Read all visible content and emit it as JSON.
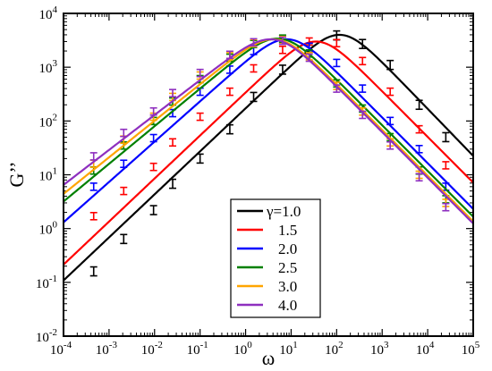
{
  "chart_data": {
    "type": "line",
    "scale": {
      "x": "log",
      "y": "log"
    },
    "xlabel": "ω",
    "ylabel": "G’’",
    "xlim": [
      0.0001,
      100000
    ],
    "ylim": [
      0.01,
      10000
    ],
    "x_ticks": [
      {
        "base": "10",
        "exp": "-4",
        "value": 0.0001
      },
      {
        "base": "10",
        "exp": "-3",
        "value": 0.001
      },
      {
        "base": "10",
        "exp": "-2",
        "value": 0.01
      },
      {
        "base": "10",
        "exp": "-1",
        "value": 0.1
      },
      {
        "base": "10",
        "exp": "0",
        "value": 1
      },
      {
        "base": "10",
        "exp": "1",
        "value": 10
      },
      {
        "base": "10",
        "exp": "2",
        "value": 100
      },
      {
        "base": "10",
        "exp": "3",
        "value": 1000
      },
      {
        "base": "10",
        "exp": "4",
        "value": 10000
      },
      {
        "base": "10",
        "exp": "5",
        "value": 100000
      }
    ],
    "y_ticks": [
      {
        "base": "10",
        "exp": "-2",
        "value": 0.01
      },
      {
        "base": "10",
        "exp": "-1",
        "value": 0.1
      },
      {
        "base": "10",
        "exp": "0",
        "value": 1
      },
      {
        "base": "10",
        "exp": "1",
        "value": 10
      },
      {
        "base": "10",
        "exp": "2",
        "value": 100
      },
      {
        "base": "10",
        "exp": "3",
        "value": 1000
      },
      {
        "base": "10",
        "exp": "4",
        "value": 10000
      }
    ],
    "legend": {
      "position": "bottom-center",
      "entries": [
        "γ=1.0",
        "1.5",
        "2.0",
        "2.5",
        "3.0",
        "4.0"
      ]
    },
    "series": [
      {
        "name": "γ=1.0",
        "color": "#000000",
        "peak": {
          "omega": 115,
          "g": 4000
        },
        "low_slope": 0.8,
        "high_slope": -0.875,
        "points": [
          {
            "x": 0.00046,
            "y": 0.16
          },
          {
            "x": 0.0021,
            "y": 0.64
          },
          {
            "x": 0.0095,
            "y": 2.2
          },
          {
            "x": 0.025,
            "y": 6.8
          },
          {
            "x": 0.1,
            "y": 20
          },
          {
            "x": 0.45,
            "y": 70
          },
          {
            "x": 1.5,
            "y": 280
          },
          {
            "x": 6.5,
            "y": 900
          },
          {
            "x": 25,
            "y": 2300
          },
          {
            "x": 100,
            "y": 3900
          },
          {
            "x": 370,
            "y": 2700
          },
          {
            "x": 1500,
            "y": 1100
          },
          {
            "x": 6500,
            "y": 200
          },
          {
            "x": 25000,
            "y": 50
          }
        ]
      },
      {
        "name": "1.5",
        "color": "#ff0000",
        "peak": {
          "omega": 35,
          "g": 3000
        },
        "low_slope": 0.8,
        "high_slope": -0.85,
        "points": [
          {
            "x": 0.00046,
            "y": 1.7
          },
          {
            "x": 0.0021,
            "y": 5
          },
          {
            "x": 0.0095,
            "y": 14
          },
          {
            "x": 0.025,
            "y": 40
          },
          {
            "x": 0.1,
            "y": 120
          },
          {
            "x": 0.45,
            "y": 350
          },
          {
            "x": 1.5,
            "y": 950
          },
          {
            "x": 6.5,
            "y": 2100
          },
          {
            "x": 25,
            "y": 3000
          },
          {
            "x": 100,
            "y": 2800
          },
          {
            "x": 370,
            "y": 1300
          },
          {
            "x": 1500,
            "y": 350
          },
          {
            "x": 6500,
            "y": 70
          },
          {
            "x": 25000,
            "y": 15
          }
        ]
      },
      {
        "name": "2.0",
        "color": "#0000ff",
        "peak": {
          "omega": 8,
          "g": 3300
        },
        "low_slope": 0.75,
        "high_slope": -0.85,
        "points": [
          {
            "x": 0.00046,
            "y": 6
          },
          {
            "x": 0.0021,
            "y": 16
          },
          {
            "x": 0.0095,
            "y": 48
          },
          {
            "x": 0.025,
            "y": 140
          },
          {
            "x": 0.1,
            "y": 350
          },
          {
            "x": 0.45,
            "y": 900
          },
          {
            "x": 1.5,
            "y": 2000
          },
          {
            "x": 6.5,
            "y": 3300
          },
          {
            "x": 25,
            "y": 2400
          },
          {
            "x": 100,
            "y": 1200
          },
          {
            "x": 370,
            "y": 400
          },
          {
            "x": 1500,
            "y": 100
          },
          {
            "x": 6500,
            "y": 30
          },
          {
            "x": 25000,
            "y": 6
          }
        ]
      },
      {
        "name": "2.5",
        "color": "#008000",
        "peak": {
          "omega": 5,
          "g": 3400
        },
        "low_slope": 0.7,
        "high_slope": -0.85,
        "points": [
          {
            "x": 0.00046,
            "y": 12
          },
          {
            "x": 0.0021,
            "y": 35
          },
          {
            "x": 0.0095,
            "y": 100
          },
          {
            "x": 0.025,
            "y": 230
          },
          {
            "x": 0.1,
            "y": 600
          },
          {
            "x": 0.45,
            "y": 1500
          },
          {
            "x": 1.5,
            "y": 2700
          },
          {
            "x": 6.5,
            "y": 3400
          },
          {
            "x": 25,
            "y": 1800
          },
          {
            "x": 100,
            "y": 500
          },
          {
            "x": 370,
            "y": 170
          },
          {
            "x": 1500,
            "y": 50
          },
          {
            "x": 6500,
            "y": 12
          },
          {
            "x": 25000,
            "y": 3.5
          }
        ]
      },
      {
        "name": "3.0",
        "color": "#ffa500",
        "peak": {
          "omega": 4,
          "g": 3300
        },
        "low_slope": 0.68,
        "high_slope": -0.85,
        "points": [
          {
            "x": 0.00046,
            "y": 16
          },
          {
            "x": 0.0021,
            "y": 45
          },
          {
            "x": 0.0095,
            "y": 120
          },
          {
            "x": 0.025,
            "y": 280
          },
          {
            "x": 0.1,
            "y": 700
          },
          {
            "x": 0.45,
            "y": 1600
          },
          {
            "x": 1.5,
            "y": 2800
          },
          {
            "x": 6.5,
            "y": 3200
          },
          {
            "x": 25,
            "y": 1600
          },
          {
            "x": 100,
            "y": 450
          },
          {
            "x": 370,
            "y": 150
          },
          {
            "x": 1500,
            "y": 40
          },
          {
            "x": 6500,
            "y": 10
          },
          {
            "x": 25000,
            "y": 3
          }
        ]
      },
      {
        "name": "4.0",
        "color": "#8e2fbf",
        "peak": {
          "omega": 3.5,
          "g": 3300
        },
        "low_slope": 0.65,
        "high_slope": -0.85,
        "points": [
          {
            "x": 0.00046,
            "y": 22
          },
          {
            "x": 0.0021,
            "y": 60
          },
          {
            "x": 0.0095,
            "y": 150
          },
          {
            "x": 0.025,
            "y": 330
          },
          {
            "x": 0.1,
            "y": 780
          },
          {
            "x": 0.45,
            "y": 1700
          },
          {
            "x": 1.5,
            "y": 2900
          },
          {
            "x": 6.5,
            "y": 3100
          },
          {
            "x": 25,
            "y": 1500
          },
          {
            "x": 100,
            "y": 400
          },
          {
            "x": 370,
            "y": 130
          },
          {
            "x": 1500,
            "y": 35
          },
          {
            "x": 6500,
            "y": 9
          },
          {
            "x": 25000,
            "y": 2.5
          }
        ]
      }
    ]
  }
}
